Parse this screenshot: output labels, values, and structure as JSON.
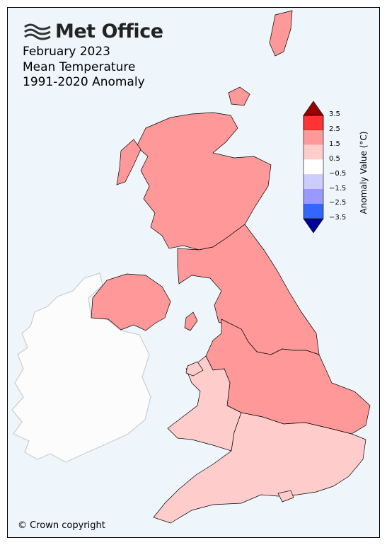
{
  "logo": {
    "text": "Met Office",
    "icon": "met-office-wave-icon"
  },
  "title": {
    "line1": "February 2023",
    "line2": "Mean Temperature",
    "line3": "1991-2020 Anomaly"
  },
  "copyright": "© Crown copyright",
  "legend": {
    "title": "Anomaly Value (°C)",
    "ticks": [
      "3.5",
      "2.5",
      "1.5",
      "0.5",
      "−0.5",
      "−1.5",
      "−2.5",
      "−3.5"
    ],
    "colors": {
      "above_3_5": "#990000",
      "band_2_5_3_5": "#ff3333",
      "band_1_5_2_5": "#ff9999",
      "band_0_5_1_5": "#ffcccc",
      "band_neg0_5_0_5": "#ffffff",
      "band_neg1_5_neg0_5": "#ccccff",
      "band_neg2_5_neg1_5": "#9999ff",
      "band_neg3_5_neg2_5": "#3366ff",
      "below_neg3_5": "#000099"
    }
  },
  "colors": {
    "sea": "#eef6fb",
    "ireland": "#fcfcfc",
    "ireland_border": "#cccccc",
    "anomaly_1_5_2_5": "#ff9999",
    "anomaly_0_5_1_5": "#ffcccc"
  }
}
